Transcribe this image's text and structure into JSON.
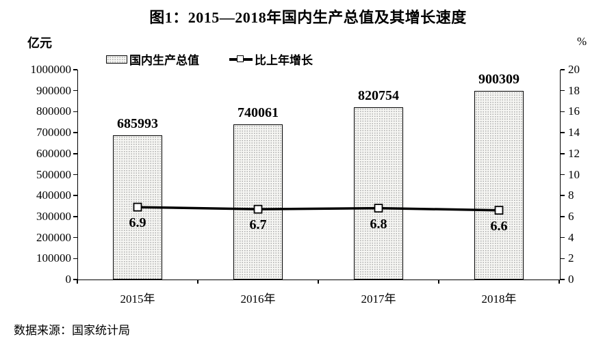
{
  "figure": {
    "title": "图1：2015—2018年国内生产总值及其增长速度",
    "source": "数据来源：国家统计局"
  },
  "legend": {
    "bar_label": "国内生产总值",
    "line_label": "比上年增长"
  },
  "chart_data": {
    "type": "bar+line",
    "title": "图1：2015—2018年国内生产总值及其增长速度",
    "categories": [
      "2015年",
      "2016年",
      "2017年",
      "2018年"
    ],
    "series": [
      {
        "name": "国内生产总值",
        "type": "bar",
        "axis": "left",
        "values": [
          685993,
          740061,
          820754,
          900309
        ]
      },
      {
        "name": "比上年增长",
        "type": "line",
        "axis": "right",
        "values": [
          6.9,
          6.7,
          6.8,
          6.6
        ]
      }
    ],
    "left_axis": {
      "unit": "亿元",
      "min": 0,
      "max": 1000000,
      "tick_step": 100000,
      "ticks": [
        0,
        100000,
        200000,
        300000,
        400000,
        500000,
        600000,
        700000,
        800000,
        900000,
        1000000
      ]
    },
    "right_axis": {
      "unit": "%",
      "min": 0,
      "max": 20,
      "tick_step": 2,
      "ticks": [
        0,
        2,
        4,
        6,
        8,
        10,
        12,
        14,
        16,
        18,
        20
      ]
    },
    "legend_position": "top",
    "gridlines": false,
    "colors": {
      "text": "#000000",
      "axis": "#000000",
      "bar_fill": "#f6f6f3",
      "bar_dot": "#a9a9a9",
      "bar_border": "#000000",
      "line": "#000000",
      "marker_fill": "#ffffff"
    },
    "source_note": "数据来源：国家统计局"
  }
}
